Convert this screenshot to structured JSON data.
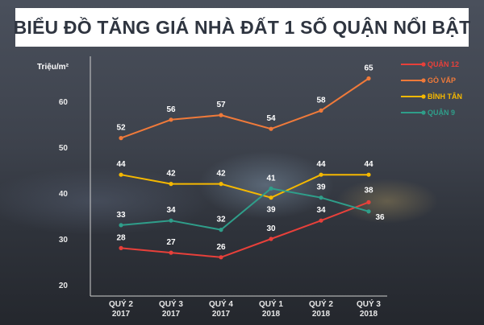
{
  "title": "BIỂU ĐỒ TĂNG GIÁ NHÀ ĐẤT 1 SỐ QUẬN NỔI BẬT",
  "chart_data": {
    "type": "line",
    "title": "BIỂU ĐỒ TĂNG GIÁ NHÀ ĐẤT 1 SỐ QUẬN NỔI BẬT",
    "ylabel": "Triệu/m²",
    "xlabel": "",
    "ylim": [
      20,
      70
    ],
    "yticks": [
      20,
      30,
      40,
      50,
      60
    ],
    "categories": [
      [
        "QUÝ 2",
        "2017"
      ],
      [
        "QUÝ 3",
        "2017"
      ],
      [
        "QUÝ 4",
        "2017"
      ],
      [
        "QUÝ 1",
        "2018"
      ],
      [
        "QUÝ 2",
        "2018"
      ],
      [
        "QUÝ 3",
        "2018"
      ]
    ],
    "legend_position": "top-right",
    "grid": false,
    "series": [
      {
        "name": "QUẬN 12",
        "color": "#e8403a",
        "values": [
          28,
          27,
          26,
          30,
          34,
          38
        ]
      },
      {
        "name": "GÒ VẤP",
        "color": "#f07a3a",
        "values": [
          52,
          56,
          57,
          54,
          58,
          65
        ]
      },
      {
        "name": "BÌNH TÂN",
        "color": "#f5b800",
        "values": [
          44,
          42,
          42,
          39,
          44,
          44
        ]
      },
      {
        "name": "QUẬN 9",
        "color": "#2f9e8a",
        "values": [
          33,
          34,
          32,
          41,
          39,
          36
        ]
      }
    ]
  }
}
